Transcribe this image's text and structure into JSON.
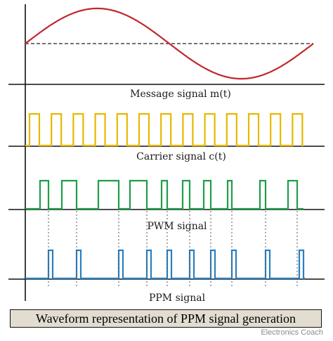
{
  "labels": {
    "message": "Message signal m(t)",
    "carrier": "Carrier signal c(t)",
    "pwm": "PWM signal",
    "ppm": "PPM signal"
  },
  "caption": "Waveform representation of PPM signal generation",
  "credit": "Electronics Coach",
  "colors": {
    "message": "#c0272d",
    "carrier": "#e6b800",
    "pwm": "#1e9e4a",
    "ppm": "#2a7fc0",
    "axis": "#111111",
    "sync": "#555555",
    "caption_bg": "#e3ddd1"
  }
}
